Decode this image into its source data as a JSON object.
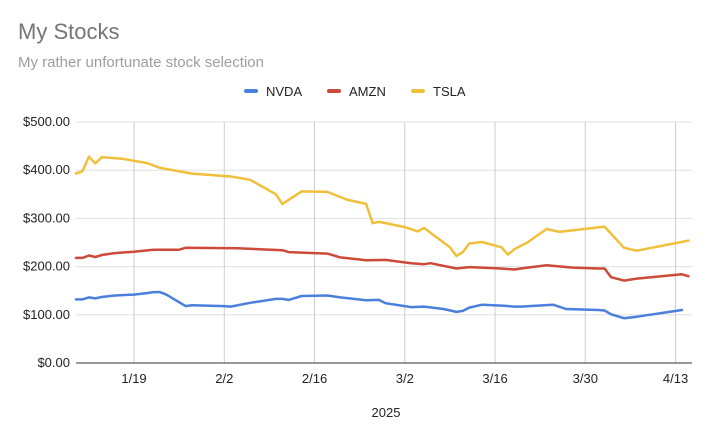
{
  "chart_data": {
    "type": "line",
    "title": "My Stocks",
    "subtitle": "My rather unfortunate stock selection",
    "xlabel": "2025",
    "ylabel": "",
    "ylim": [
      0,
      500
    ],
    "yticks": [
      {
        "value": 0,
        "label": "$0.00"
      },
      {
        "value": 100,
        "label": "$100.00"
      },
      {
        "value": 200,
        "label": "$200.00"
      },
      {
        "value": 300,
        "label": "$300.00"
      },
      {
        "value": 400,
        "label": "$400.00"
      },
      {
        "value": 500,
        "label": "$500.00"
      }
    ],
    "xlim": [
      "2025-01-10",
      "2025-04-14"
    ],
    "xticks": [
      {
        "value": "2025-01-19",
        "label": "1/19"
      },
      {
        "value": "2025-02-02",
        "label": "2/2"
      },
      {
        "value": "2025-02-16",
        "label": "2/16"
      },
      {
        "value": "2025-03-02",
        "label": "3/2"
      },
      {
        "value": "2025-03-16",
        "label": "3/16"
      },
      {
        "value": "2025-03-30",
        "label": "3/30"
      },
      {
        "value": "2025-04-13",
        "label": "4/13"
      }
    ],
    "grid": true,
    "legend_position": "top",
    "series": [
      {
        "name": "NVDA",
        "color": "#4a7fdc",
        "points": [
          [
            "2025-01-10",
            132
          ],
          [
            "2025-01-11",
            132
          ],
          [
            "2025-01-12",
            136
          ],
          [
            "2025-01-13",
            134
          ],
          [
            "2025-01-14",
            137
          ],
          [
            "2025-01-16",
            140
          ],
          [
            "2025-01-19",
            142
          ],
          [
            "2025-01-21",
            145
          ],
          [
            "2025-01-22",
            147
          ],
          [
            "2025-01-23",
            147
          ],
          [
            "2025-01-24",
            142
          ],
          [
            "2025-01-27",
            118
          ],
          [
            "2025-01-28",
            120
          ],
          [
            "2025-02-02",
            118
          ],
          [
            "2025-02-03",
            117
          ],
          [
            "2025-02-06",
            125
          ],
          [
            "2025-02-10",
            133
          ],
          [
            "2025-02-11",
            133
          ],
          [
            "2025-02-12",
            131
          ],
          [
            "2025-02-14",
            139
          ],
          [
            "2025-02-18",
            140
          ],
          [
            "2025-02-20",
            136
          ],
          [
            "2025-02-24",
            130
          ],
          [
            "2025-02-26",
            131
          ],
          [
            "2025-02-27",
            124
          ],
          [
            "2025-03-03",
            116
          ],
          [
            "2025-03-05",
            117
          ],
          [
            "2025-03-08",
            112
          ],
          [
            "2025-03-10",
            106
          ],
          [
            "2025-03-11",
            108
          ],
          [
            "2025-03-12",
            115
          ],
          [
            "2025-03-14",
            121
          ],
          [
            "2025-03-17",
            119
          ],
          [
            "2025-03-19",
            117
          ],
          [
            "2025-03-20",
            117
          ],
          [
            "2025-03-25",
            121
          ],
          [
            "2025-03-27",
            112
          ],
          [
            "2025-04-01",
            110
          ],
          [
            "2025-04-02",
            109
          ],
          [
            "2025-04-03",
            101
          ],
          [
            "2025-04-05",
            93
          ],
          [
            "2025-04-07",
            96
          ],
          [
            "2025-04-14",
            110
          ]
        ]
      },
      {
        "name": "AMZN",
        "color": "#cc4a37",
        "points": [
          [
            "2025-01-10",
            218
          ],
          [
            "2025-01-11",
            218
          ],
          [
            "2025-01-12",
            223
          ],
          [
            "2025-01-13",
            220
          ],
          [
            "2025-01-14",
            224
          ],
          [
            "2025-01-16",
            228
          ],
          [
            "2025-01-19",
            231
          ],
          [
            "2025-01-22",
            235
          ],
          [
            "2025-01-26",
            235
          ],
          [
            "2025-01-27",
            239
          ],
          [
            "2025-02-04",
            238
          ],
          [
            "2025-02-11",
            234
          ],
          [
            "2025-02-12",
            230
          ],
          [
            "2025-02-18",
            227
          ],
          [
            "2025-02-20",
            219
          ],
          [
            "2025-02-24",
            213
          ],
          [
            "2025-02-27",
            214
          ],
          [
            "2025-03-03",
            207
          ],
          [
            "2025-03-05",
            205
          ],
          [
            "2025-03-06",
            207
          ],
          [
            "2025-03-10",
            196
          ],
          [
            "2025-03-12",
            199
          ],
          [
            "2025-03-17",
            196
          ],
          [
            "2025-03-19",
            194
          ],
          [
            "2025-03-20",
            196
          ],
          [
            "2025-03-24",
            203
          ],
          [
            "2025-03-28",
            198
          ],
          [
            "2025-04-01",
            196
          ],
          [
            "2025-04-02",
            196
          ],
          [
            "2025-04-03",
            178
          ],
          [
            "2025-04-05",
            171
          ],
          [
            "2025-04-07",
            175
          ],
          [
            "2025-04-14",
            184
          ],
          [
            "2025-04-15",
            180
          ]
        ]
      },
      {
        "name": "TSLA",
        "color": "#f0bf3c",
        "points": [
          [
            "2025-01-10",
            393
          ],
          [
            "2025-01-11",
            398
          ],
          [
            "2025-01-12",
            428
          ],
          [
            "2025-01-13",
            414
          ],
          [
            "2025-01-14",
            427
          ],
          [
            "2025-01-17",
            424
          ],
          [
            "2025-01-21",
            415
          ],
          [
            "2025-01-23",
            405
          ],
          [
            "2025-01-28",
            393
          ],
          [
            "2025-02-03",
            387
          ],
          [
            "2025-02-06",
            380
          ],
          [
            "2025-02-10",
            350
          ],
          [
            "2025-02-11",
            330
          ],
          [
            "2025-02-14",
            356
          ],
          [
            "2025-02-18",
            355
          ],
          [
            "2025-02-21",
            339
          ],
          [
            "2025-02-24",
            330
          ],
          [
            "2025-02-25",
            290
          ],
          [
            "2025-02-26",
            293
          ],
          [
            "2025-03-02",
            282
          ],
          [
            "2025-03-04",
            273
          ],
          [
            "2025-03-05",
            280
          ],
          [
            "2025-03-09",
            240
          ],
          [
            "2025-03-10",
            222
          ],
          [
            "2025-03-11",
            230
          ],
          [
            "2025-03-12",
            248
          ],
          [
            "2025-03-14",
            251
          ],
          [
            "2025-03-17",
            240
          ],
          [
            "2025-03-18",
            225
          ],
          [
            "2025-03-19",
            236
          ],
          [
            "2025-03-21",
            250
          ],
          [
            "2025-03-24",
            278
          ],
          [
            "2025-03-26",
            272
          ],
          [
            "2025-04-02",
            283
          ],
          [
            "2025-04-05",
            239
          ],
          [
            "2025-04-07",
            233
          ],
          [
            "2025-04-15",
            254
          ]
        ]
      }
    ]
  }
}
